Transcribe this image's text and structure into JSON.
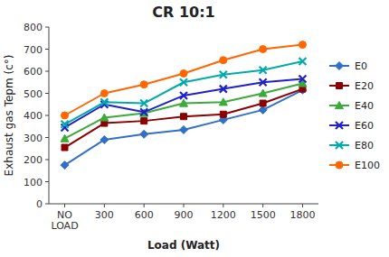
{
  "chart_data": {
    "type": "line",
    "title": "CR 10:1",
    "xlabel": "Load (Watt)",
    "ylabel": "Exhaust gas Tepm (c°)",
    "categories": [
      "NO\nLOAD",
      "300",
      "600",
      "900",
      "1200",
      "1500",
      "1800"
    ],
    "series": [
      {
        "name": "E0",
        "color": "#3070C8",
        "marker": "diamond",
        "values": [
          175,
          290,
          315,
          335,
          380,
          425,
          515
        ]
      },
      {
        "name": "E20",
        "color": "#8B0000",
        "marker": "square",
        "values": [
          255,
          365,
          375,
          395,
          405,
          455,
          520
        ]
      },
      {
        "name": "E40",
        "color": "#3AAA3A",
        "marker": "triangle",
        "values": [
          295,
          390,
          410,
          455,
          460,
          500,
          545
        ]
      },
      {
        "name": "E60",
        "color": "#2020CC",
        "marker": "x",
        "values": [
          345,
          450,
          415,
          490,
          520,
          550,
          565
        ]
      },
      {
        "name": "E80",
        "color": "#00AAAA",
        "marker": "x",
        "values": [
          360,
          460,
          455,
          550,
          585,
          605,
          645
        ]
      },
      {
        "name": "E100",
        "color": "#FF6600",
        "marker": "circle",
        "values": [
          400,
          500,
          540,
          590,
          650,
          700,
          720
        ]
      }
    ],
    "ylim": [
      0,
      800
    ],
    "yticks": [
      0,
      100,
      200,
      300,
      400,
      500,
      600,
      700,
      800
    ],
    "grid": false,
    "legend": "right"
  }
}
